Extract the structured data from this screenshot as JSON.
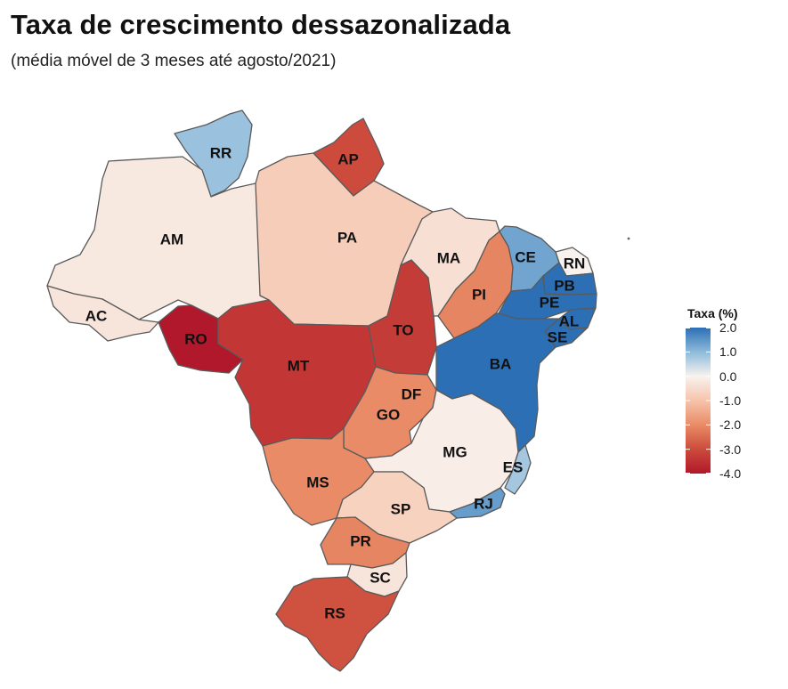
{
  "title": "Taxa de crescimento dessazonalizada",
  "subtitle": "(média móvel de 3 meses até agosto/2021)",
  "legend": {
    "title": "Taxa (%)",
    "min": -4.0,
    "max": 2.0,
    "ticks": [
      "2.0",
      "1.0",
      "0.0",
      "-1.0",
      "-2.0",
      "-3.0",
      "-4.0"
    ],
    "tick_values": [
      2.0,
      1.0,
      0.0,
      -1.0,
      -2.0,
      -3.0,
      -4.0
    ],
    "colors": {
      "high": "#2c6fb5",
      "mid_high": "#cfe2f0",
      "zero": "#f8f2ee",
      "mid_low": "#f0926a",
      "low": "#b2182b"
    }
  },
  "states": [
    {
      "code": "RR",
      "value": 0.9
    },
    {
      "code": "AP",
      "value": -3.0
    },
    {
      "code": "AM",
      "value": -0.2
    },
    {
      "code": "PA",
      "value": -0.8
    },
    {
      "code": "AC",
      "value": -0.3
    },
    {
      "code": "RO",
      "value": -4.0
    },
    {
      "code": "MT",
      "value": -3.4
    },
    {
      "code": "TO",
      "value": -3.3
    },
    {
      "code": "MA",
      "value": -0.4
    },
    {
      "code": "PI",
      "value": -2.1
    },
    {
      "code": "CE",
      "value": 1.3
    },
    {
      "code": "RN",
      "value": 0.0
    },
    {
      "code": "PB",
      "value": 2.0
    },
    {
      "code": "PE",
      "value": 2.0
    },
    {
      "code": "AL",
      "value": 2.1
    },
    {
      "code": "SE",
      "value": 2.0
    },
    {
      "code": "BA",
      "value": 2.0
    },
    {
      "code": "DF",
      "value": -3.0
    },
    {
      "code": "GO",
      "value": -2.0
    },
    {
      "code": "MG",
      "value": -0.1
    },
    {
      "code": "ES",
      "value": 0.8
    },
    {
      "code": "RJ",
      "value": 1.4
    },
    {
      "code": "MS",
      "value": -2.0
    },
    {
      "code": "SP",
      "value": -0.7
    },
    {
      "code": "PR",
      "value": -2.1
    },
    {
      "code": "SC",
      "value": -0.3
    },
    {
      "code": "RS",
      "value": -2.9
    }
  ]
}
